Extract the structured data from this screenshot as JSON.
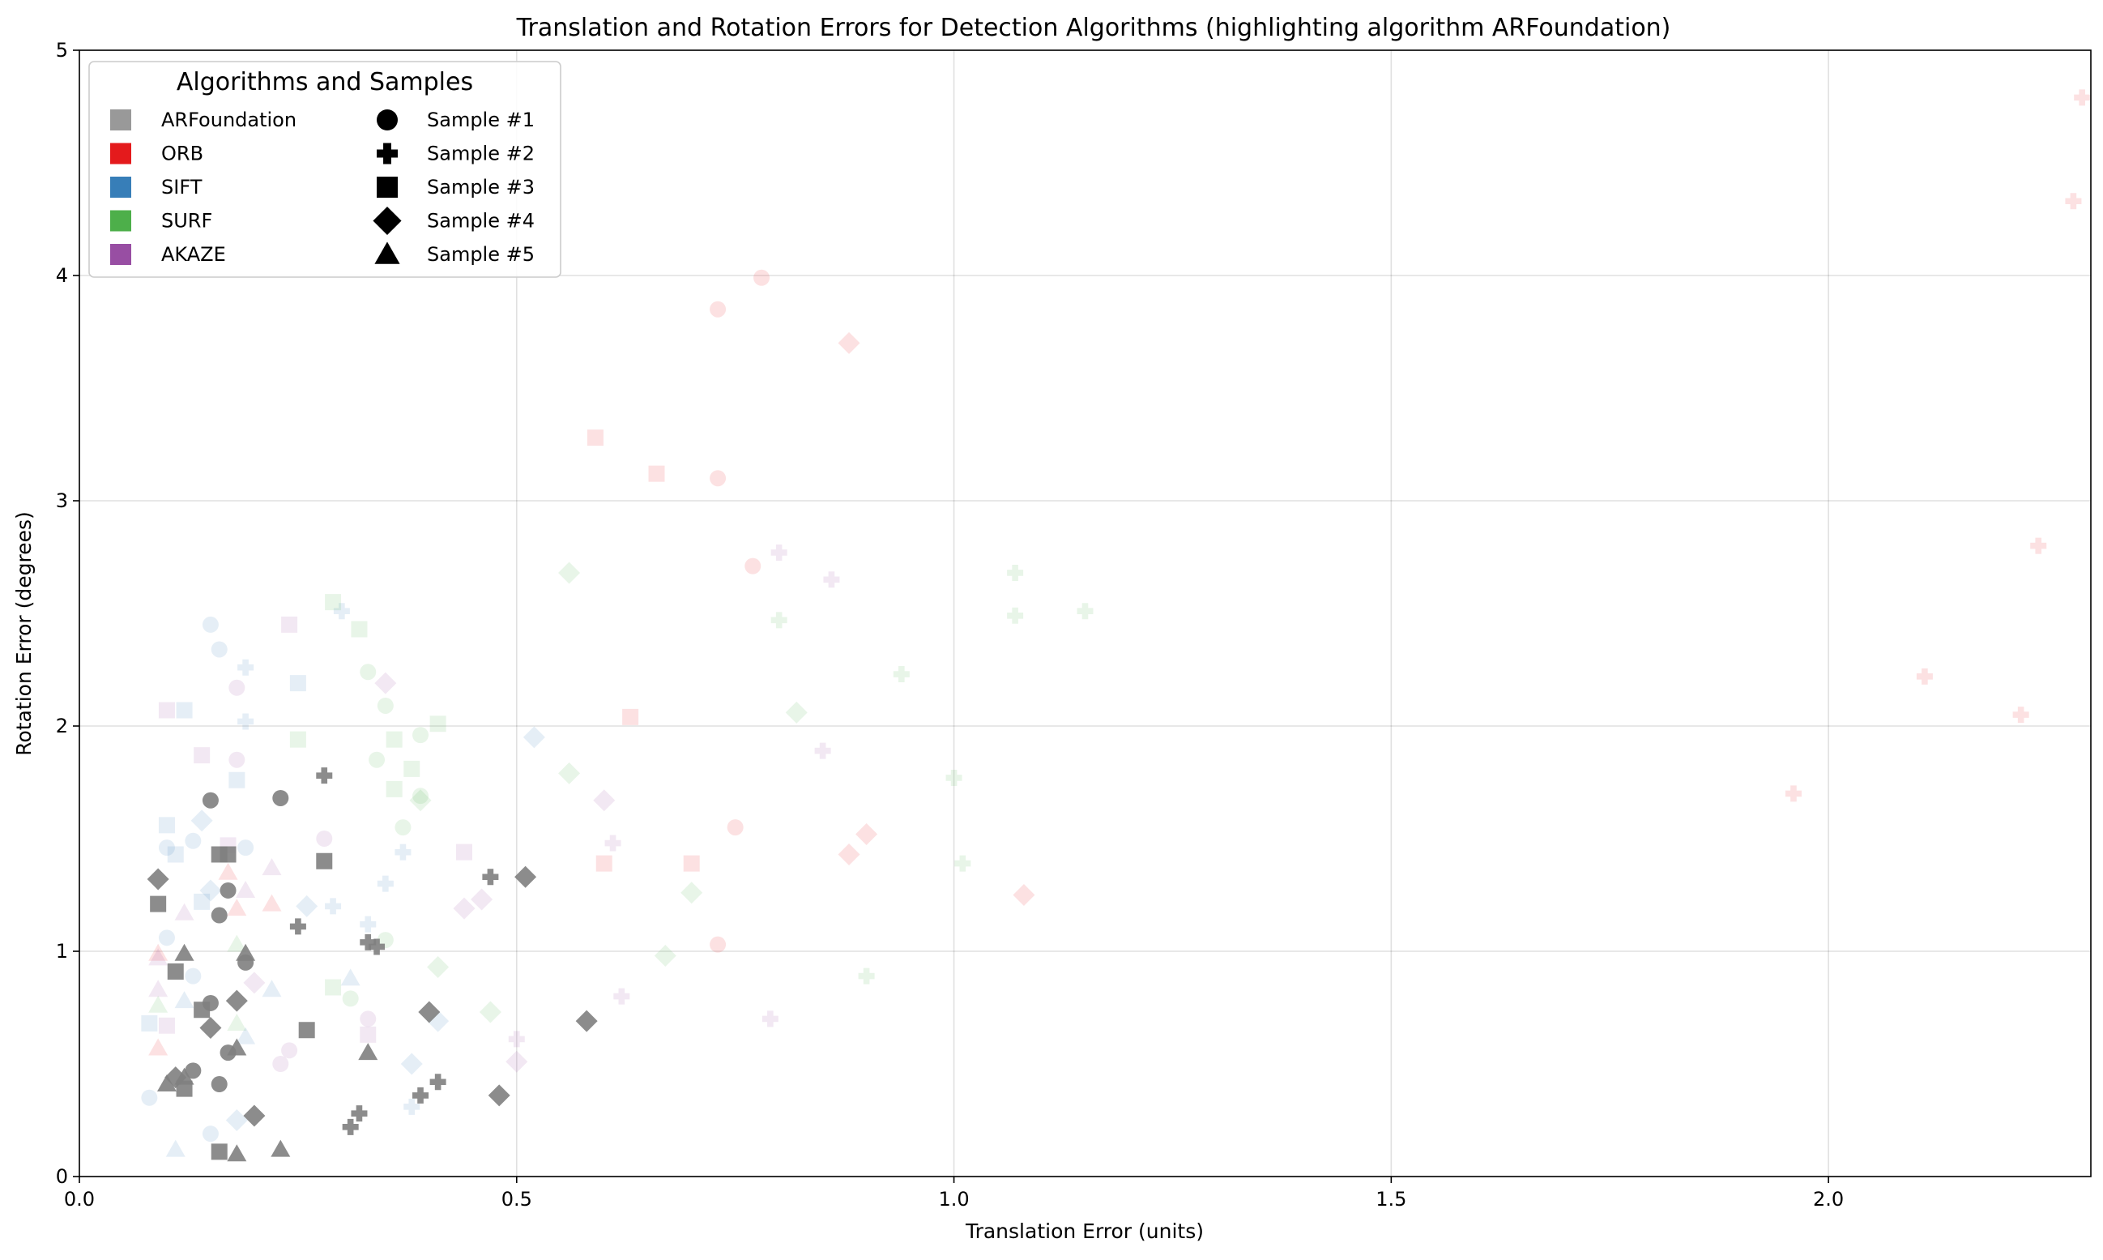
{
  "chart_data": {
    "type": "scatter",
    "title": "Translation and Rotation Errors for Detection Algorithms (highlighting algorithm ARFoundation)",
    "xlabel": "Translation Error (units)",
    "ylabel": "Rotation Error (degrees)",
    "xlim": [
      0.0,
      2.3
    ],
    "ylim": [
      0,
      5
    ],
    "x_ticks": [
      "0.0",
      "0.5",
      "1.0",
      "1.5",
      "2.0"
    ],
    "y_ticks": [
      "0",
      "1",
      "2",
      "3",
      "4",
      "5"
    ],
    "grid": true,
    "highlighted": "ARFoundation",
    "legend": {
      "title": "Algorithms and Samples",
      "placement": "top-left",
      "algorithms": [
        {
          "name": "ARFoundation",
          "color": "#999999"
        },
        {
          "name": "ORB",
          "color": "#e41a1c"
        },
        {
          "name": "SIFT",
          "color": "#377eb8"
        },
        {
          "name": "SURF",
          "color": "#4daf4a"
        },
        {
          "name": "AKAZE",
          "color": "#984ea3"
        }
      ],
      "samples": [
        {
          "name": "Sample #1",
          "marker": "circle"
        },
        {
          "name": "Sample #2",
          "marker": "plus"
        },
        {
          "name": "Sample #3",
          "marker": "square"
        },
        {
          "name": "Sample #4",
          "marker": "diamond"
        },
        {
          "name": "Sample #5",
          "marker": "triangle"
        }
      ]
    },
    "series": [
      {
        "algorithm": "ARFoundation",
        "sample": "Sample #1",
        "points": [
          [
            0.15,
            1.67
          ],
          [
            0.23,
            1.68
          ],
          [
            0.17,
            1.27
          ],
          [
            0.16,
            1.16
          ],
          [
            0.19,
            0.95
          ],
          [
            0.15,
            0.77
          ],
          [
            0.17,
            0.55
          ],
          [
            0.13,
            0.47
          ],
          [
            0.16,
            0.41
          ]
        ]
      },
      {
        "algorithm": "ARFoundation",
        "sample": "Sample #2",
        "points": [
          [
            0.28,
            1.78
          ],
          [
            0.25,
            1.11
          ],
          [
            0.33,
            1.04
          ],
          [
            0.34,
            1.02
          ],
          [
            0.47,
            1.33
          ],
          [
            0.32,
            0.28
          ],
          [
            0.31,
            0.22
          ],
          [
            0.39,
            0.36
          ],
          [
            0.41,
            0.42
          ]
        ]
      },
      {
        "algorithm": "ARFoundation",
        "sample": "Sample #3",
        "points": [
          [
            0.16,
            1.43
          ],
          [
            0.17,
            1.43
          ],
          [
            0.28,
            1.4
          ],
          [
            0.09,
            1.21
          ],
          [
            0.11,
            0.91
          ],
          [
            0.14,
            0.74
          ],
          [
            0.26,
            0.65
          ],
          [
            0.12,
            0.39
          ],
          [
            0.16,
            0.11
          ]
        ]
      },
      {
        "algorithm": "ARFoundation",
        "sample": "Sample #4",
        "points": [
          [
            0.09,
            1.32
          ],
          [
            0.51,
            1.33
          ],
          [
            0.4,
            0.73
          ],
          [
            0.18,
            0.78
          ],
          [
            0.15,
            0.66
          ],
          [
            0.58,
            0.69
          ],
          [
            0.2,
            0.27
          ],
          [
            0.48,
            0.36
          ],
          [
            0.11,
            0.44
          ]
        ]
      },
      {
        "algorithm": "ARFoundation",
        "sample": "Sample #5",
        "points": [
          [
            0.12,
            0.99
          ],
          [
            0.19,
            0.99
          ],
          [
            0.18,
            0.57
          ],
          [
            0.33,
            0.55
          ],
          [
            0.1,
            0.41
          ],
          [
            0.12,
            0.44
          ],
          [
            0.23,
            0.12
          ],
          [
            0.18,
            0.1
          ]
        ]
      },
      {
        "algorithm": "ORB",
        "sample": "Sample #1",
        "points": [
          [
            0.78,
            3.99
          ],
          [
            0.73,
            3.85
          ],
          [
            0.73,
            3.1
          ],
          [
            0.77,
            2.71
          ],
          [
            0.75,
            1.55
          ],
          [
            0.73,
            1.03
          ]
        ]
      },
      {
        "algorithm": "ORB",
        "sample": "Sample #2",
        "points": [
          [
            2.29,
            4.79
          ],
          [
            2.28,
            4.33
          ],
          [
            2.24,
            2.8
          ],
          [
            2.11,
            2.22
          ],
          [
            2.22,
            2.05
          ],
          [
            1.96,
            1.7
          ]
        ]
      },
      {
        "algorithm": "ORB",
        "sample": "Sample #3",
        "points": [
          [
            0.59,
            3.28
          ],
          [
            0.66,
            3.12
          ],
          [
            0.63,
            2.04
          ],
          [
            0.6,
            1.39
          ],
          [
            0.7,
            1.39
          ]
        ]
      },
      {
        "algorithm": "ORB",
        "sample": "Sample #4",
        "points": [
          [
            0.88,
            3.7
          ],
          [
            0.9,
            1.52
          ],
          [
            0.88,
            1.43
          ],
          [
            1.08,
            1.25
          ]
        ]
      },
      {
        "algorithm": "ORB",
        "sample": "Sample #5",
        "points": [
          [
            0.17,
            1.35
          ],
          [
            0.22,
            1.21
          ],
          [
            0.18,
            1.19
          ],
          [
            0.09,
            0.99
          ],
          [
            0.09,
            0.57
          ]
        ]
      },
      {
        "algorithm": "SIFT",
        "sample": "Sample #1",
        "points": [
          [
            0.15,
            2.45
          ],
          [
            0.16,
            2.34
          ],
          [
            0.13,
            1.49
          ],
          [
            0.1,
            1.46
          ],
          [
            0.19,
            1.46
          ],
          [
            0.1,
            1.06
          ],
          [
            0.13,
            0.89
          ],
          [
            0.08,
            0.35
          ],
          [
            0.15,
            0.19
          ]
        ]
      },
      {
        "algorithm": "SIFT",
        "sample": "Sample #2",
        "points": [
          [
            0.3,
            2.51
          ],
          [
            0.19,
            2.26
          ],
          [
            0.19,
            2.02
          ],
          [
            0.37,
            1.44
          ],
          [
            0.35,
            1.3
          ],
          [
            0.33,
            1.12
          ],
          [
            0.29,
            1.2
          ],
          [
            0.38,
            0.31
          ]
        ]
      },
      {
        "algorithm": "SIFT",
        "sample": "Sample #3",
        "points": [
          [
            0.12,
            2.07
          ],
          [
            0.25,
            2.19
          ],
          [
            0.18,
            1.76
          ],
          [
            0.1,
            1.56
          ],
          [
            0.11,
            1.43
          ],
          [
            0.14,
            1.22
          ],
          [
            0.08,
            0.68
          ]
        ]
      },
      {
        "algorithm": "SIFT",
        "sample": "Sample #4",
        "points": [
          [
            0.52,
            1.95
          ],
          [
            0.14,
            1.58
          ],
          [
            0.15,
            1.27
          ],
          [
            0.26,
            1.2
          ],
          [
            0.38,
            0.5
          ],
          [
            0.41,
            0.69
          ],
          [
            0.18,
            0.25
          ]
        ]
      },
      {
        "algorithm": "SIFT",
        "sample": "Sample #5",
        "points": [
          [
            0.31,
            0.88
          ],
          [
            0.12,
            0.78
          ],
          [
            0.22,
            0.83
          ],
          [
            0.19,
            0.62
          ],
          [
            0.11,
            0.12
          ]
        ]
      },
      {
        "algorithm": "SURF",
        "sample": "Sample #1",
        "points": [
          [
            0.33,
            2.24
          ],
          [
            0.35,
            2.09
          ],
          [
            0.34,
            1.85
          ],
          [
            0.39,
            1.96
          ],
          [
            0.37,
            1.55
          ],
          [
            0.39,
            1.69
          ],
          [
            0.35,
            1.05
          ],
          [
            0.31,
            0.79
          ]
        ]
      },
      {
        "algorithm": "SURF",
        "sample": "Sample #2",
        "points": [
          [
            1.07,
            2.68
          ],
          [
            1.15,
            2.51
          ],
          [
            1.07,
            2.49
          ],
          [
            0.8,
            2.47
          ],
          [
            0.94,
            2.23
          ],
          [
            1.0,
            1.77
          ],
          [
            1.01,
            1.39
          ],
          [
            0.9,
            0.89
          ]
        ]
      },
      {
        "algorithm": "SURF",
        "sample": "Sample #3",
        "points": [
          [
            0.29,
            2.55
          ],
          [
            0.32,
            2.43
          ],
          [
            0.25,
            1.94
          ],
          [
            0.36,
            1.94
          ],
          [
            0.41,
            2.01
          ],
          [
            0.38,
            1.81
          ],
          [
            0.36,
            1.72
          ],
          [
            0.29,
            0.84
          ]
        ]
      },
      {
        "algorithm": "SURF",
        "sample": "Sample #4",
        "points": [
          [
            0.56,
            2.68
          ],
          [
            0.82,
            2.06
          ],
          [
            0.56,
            1.79
          ],
          [
            0.39,
            1.67
          ],
          [
            0.7,
            1.26
          ],
          [
            0.41,
            0.93
          ],
          [
            0.67,
            0.98
          ],
          [
            0.47,
            0.73
          ]
        ]
      },
      {
        "algorithm": "SURF",
        "sample": "Sample #5",
        "points": [
          [
            0.18,
            1.03
          ],
          [
            0.09,
            0.76
          ],
          [
            0.18,
            0.68
          ]
        ]
      },
      {
        "algorithm": "AKAZE",
        "sample": "Sample #1",
        "points": [
          [
            0.18,
            2.17
          ],
          [
            0.18,
            1.85
          ],
          [
            0.28,
            1.5
          ],
          [
            0.33,
            0.7
          ],
          [
            0.24,
            0.56
          ],
          [
            0.23,
            0.5
          ]
        ]
      },
      {
        "algorithm": "AKAZE",
        "sample": "Sample #2",
        "points": [
          [
            0.8,
            2.77
          ],
          [
            0.86,
            2.65
          ],
          [
            0.85,
            1.89
          ],
          [
            0.61,
            1.48
          ],
          [
            0.62,
            0.8
          ],
          [
            0.79,
            0.7
          ],
          [
            0.5,
            0.61
          ]
        ]
      },
      {
        "algorithm": "AKAZE",
        "sample": "Sample #3",
        "points": [
          [
            0.24,
            2.45
          ],
          [
            0.1,
            2.07
          ],
          [
            0.14,
            1.87
          ],
          [
            0.44,
            1.44
          ],
          [
            0.17,
            1.47
          ],
          [
            0.1,
            0.67
          ],
          [
            0.33,
            0.63
          ]
        ]
      },
      {
        "algorithm": "AKAZE",
        "sample": "Sample #4",
        "points": [
          [
            0.35,
            2.19
          ],
          [
            0.6,
            1.67
          ],
          [
            0.46,
            1.23
          ],
          [
            0.44,
            1.19
          ],
          [
            0.2,
            0.86
          ],
          [
            0.5,
            0.51
          ]
        ]
      },
      {
        "algorithm": "AKAZE",
        "sample": "Sample #5",
        "points": [
          [
            0.22,
            1.37
          ],
          [
            0.12,
            1.17
          ],
          [
            0.19,
            1.27
          ],
          [
            0.09,
            0.97
          ],
          [
            0.09,
            0.83
          ]
        ]
      }
    ]
  }
}
